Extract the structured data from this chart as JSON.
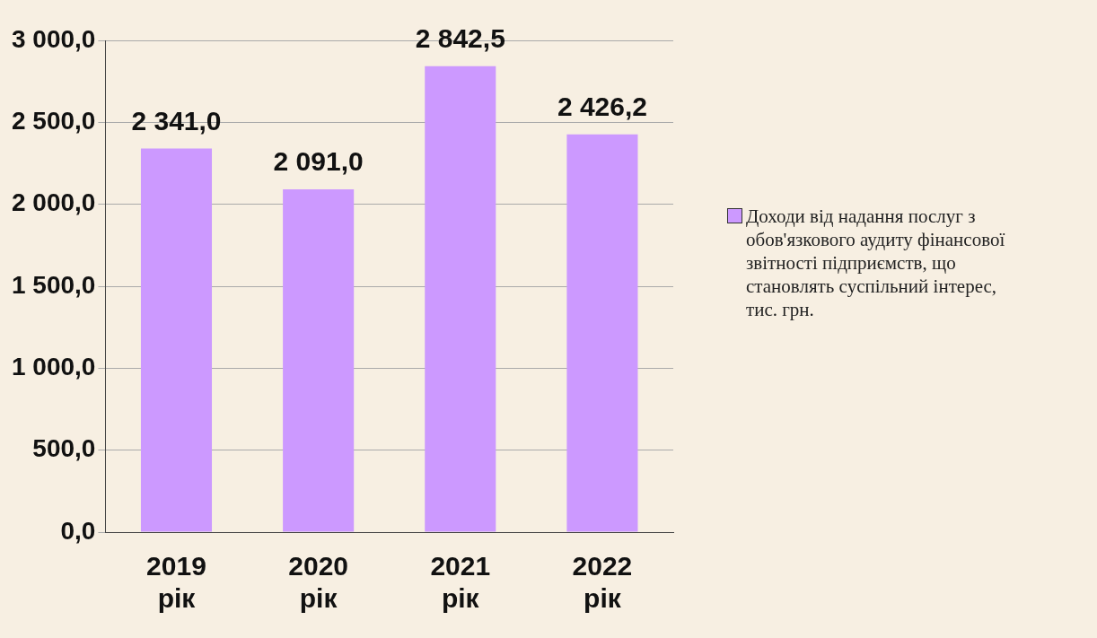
{
  "chart_data": {
    "type": "bar",
    "categories": [
      "2019 рік",
      "2020 рік",
      "2021 рік",
      "2022 рік"
    ],
    "series": [
      {
        "name": "Доходи від надання послуг з обов'язкового аудиту фінансової звітності підприємств, що становлять суспільний інтерес, тис. грн.",
        "color": "#cc99ff",
        "values": [
          2341.0,
          2091.0,
          2842.5,
          2426.2
        ],
        "value_labels": [
          "2 341,0",
          "2 091,0",
          "2 842,5",
          "2 426,2"
        ]
      }
    ],
    "ylim": [
      0,
      3000
    ],
    "yticks": [
      {
        "value": 0,
        "label": "0,0"
      },
      {
        "value": 500,
        "label": "500,0"
      },
      {
        "value": 1000,
        "label": "1 000,0"
      },
      {
        "value": 1500,
        "label": "1 500,0"
      },
      {
        "value": 2000,
        "label": "2 000,0"
      },
      {
        "value": 2500,
        "label": "2 500,0"
      },
      {
        "value": 3000,
        "label": "3 000,0"
      }
    ],
    "grid": "y",
    "legend": "right"
  }
}
